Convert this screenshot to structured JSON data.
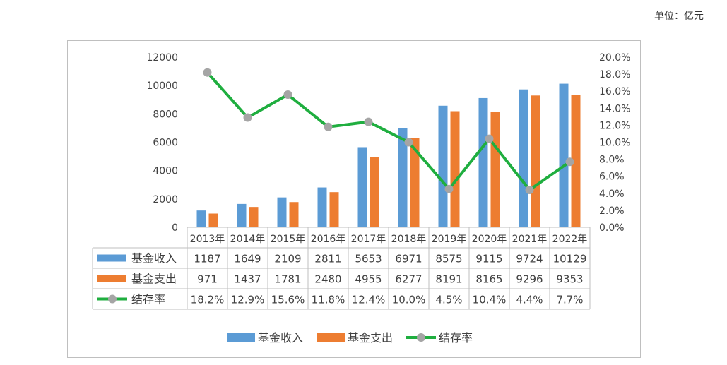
{
  "unit_label": "单位：亿元",
  "chart_data": {
    "type": "bar",
    "categories": [
      "2013年",
      "2014年",
      "2015年",
      "2016年",
      "2017年",
      "2018年",
      "2019年",
      "2020年",
      "2021年",
      "2022年"
    ],
    "series": [
      {
        "name": "基金收入",
        "type": "bar",
        "axis": "left",
        "color": "#5b9bd5",
        "values": [
          1187,
          1649,
          2109,
          2811,
          5653,
          6971,
          8575,
          9115,
          9724,
          10129
        ]
      },
      {
        "name": "基金支出",
        "type": "bar",
        "axis": "left",
        "color": "#ed7d31",
        "values": [
          971,
          1437,
          1781,
          2480,
          4955,
          6277,
          8191,
          8165,
          9296,
          9353
        ]
      },
      {
        "name": "结存率",
        "type": "line",
        "axis": "right",
        "color": "#1fae3f",
        "marker_color": "#a5a5a5",
        "values": [
          18.2,
          12.9,
          15.6,
          11.8,
          12.4,
          10.0,
          4.5,
          10.4,
          4.4,
          7.7
        ]
      }
    ],
    "table_rows": [
      [
        "1187",
        "1649",
        "2109",
        "2811",
        "5653",
        "6971",
        "8575",
        "9115",
        "9724",
        "10129"
      ],
      [
        "971",
        "1437",
        "1781",
        "2480",
        "4955",
        "6277",
        "8191",
        "8165",
        "9296",
        "9353"
      ],
      [
        "18.2%",
        "12.9%",
        "15.6%",
        "11.8%",
        "12.4%",
        "10.0%",
        "4.5%",
        "10.4%",
        "4.4%",
        "7.7%"
      ]
    ],
    "ylim_left": [
      0,
      12000
    ],
    "yticks_left": [
      "0",
      "2000",
      "4000",
      "6000",
      "8000",
      "10000",
      "12000"
    ],
    "ylim_right": [
      0,
      20
    ],
    "yticks_right": [
      "0.0%",
      "2.0%",
      "4.0%",
      "6.0%",
      "8.0%",
      "10.0%",
      "12.0%",
      "14.0%",
      "16.0%",
      "18.0%",
      "20.0%"
    ],
    "grid": false,
    "legend_position": "bottom",
    "data_table": true
  }
}
